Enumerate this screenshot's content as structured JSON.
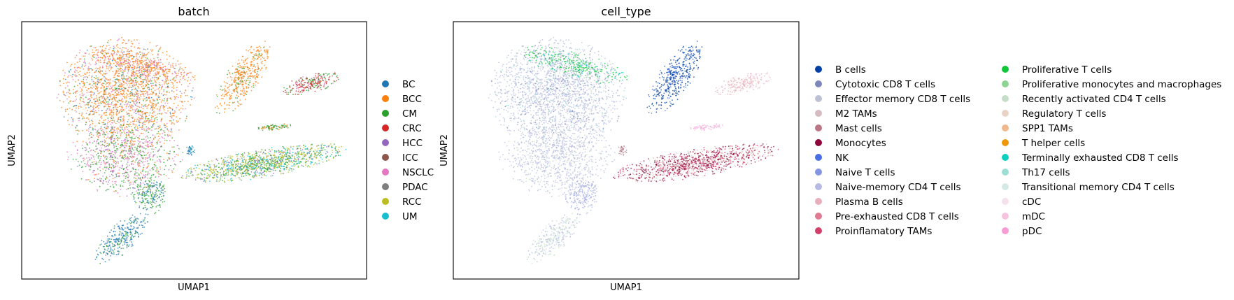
{
  "chart_data": [
    {
      "type": "scatter",
      "title": "batch",
      "xlabel": "UMAP1",
      "ylabel": "UMAP2",
      "grid": false,
      "legend_position": "right",
      "legend": [
        {
          "label": "BC",
          "color": "#1f77b4"
        },
        {
          "label": "BCC",
          "color": "#ff7f0e"
        },
        {
          "label": "CM",
          "color": "#2ca02c"
        },
        {
          "label": "CRC",
          "color": "#d62728"
        },
        {
          "label": "HCC",
          "color": "#9467bd"
        },
        {
          "label": "ICC",
          "color": "#8c564b"
        },
        {
          "label": "NSCLC",
          "color": "#e377c2"
        },
        {
          "label": "PDAC",
          "color": "#7f7f7f"
        },
        {
          "label": "RCC",
          "color": "#bcbd22"
        },
        {
          "label": "UM",
          "color": "#17becf"
        }
      ]
    },
    {
      "type": "scatter",
      "title": "cell_type",
      "xlabel": "UMAP1",
      "ylabel": "UMAP2",
      "grid": false,
      "legend_position": "right",
      "legend_columns": 2,
      "legend": [
        {
          "label": "B cells",
          "color": "#023fa5"
        },
        {
          "label": "Cytotoxic CD8 T cells",
          "color": "#7d87b9"
        },
        {
          "label": "Effector memory CD8 T cells",
          "color": "#bec1d4"
        },
        {
          "label": "M2 TAMs",
          "color": "#d6bcc0"
        },
        {
          "label": "Mast cells",
          "color": "#bb7784"
        },
        {
          "label": "Monocytes",
          "color": "#8e063b"
        },
        {
          "label": "NK",
          "color": "#4a6fe3"
        },
        {
          "label": "Naive T cells",
          "color": "#8595e1"
        },
        {
          "label": "Naive-memory CD4 T cells",
          "color": "#b5bbe3"
        },
        {
          "label": "Plasma B cells",
          "color": "#e6afb9"
        },
        {
          "label": "Pre-exhausted CD8 T cells",
          "color": "#e07b91"
        },
        {
          "label": "Proinflamatory TAMs",
          "color": "#d33f6a"
        },
        {
          "label": "Proliferative T cells",
          "color": "#11c638"
        },
        {
          "label": "Proliferative monocytes and macrophages",
          "color": "#8dd593"
        },
        {
          "label": "Recently activated CD4 T cells",
          "color": "#c6dec7"
        },
        {
          "label": "Regulatory T cells",
          "color": "#ead3c6"
        },
        {
          "label": "SPP1 TAMs",
          "color": "#f0b98d"
        },
        {
          "label": "T helper cells",
          "color": "#ef9708"
        },
        {
          "label": "Terminally exhausted CD8 T cells",
          "color": "#0fcfc0"
        },
        {
          "label": "Th17 cells",
          "color": "#9cded6"
        },
        {
          "label": "Transitional memory CD4 T cells",
          "color": "#d5eae7"
        },
        {
          "label": "cDC",
          "color": "#f3e1eb"
        },
        {
          "label": "mDC",
          "color": "#f6c4e1"
        },
        {
          "label": "pDC",
          "color": "#f79cd4"
        }
      ]
    }
  ]
}
